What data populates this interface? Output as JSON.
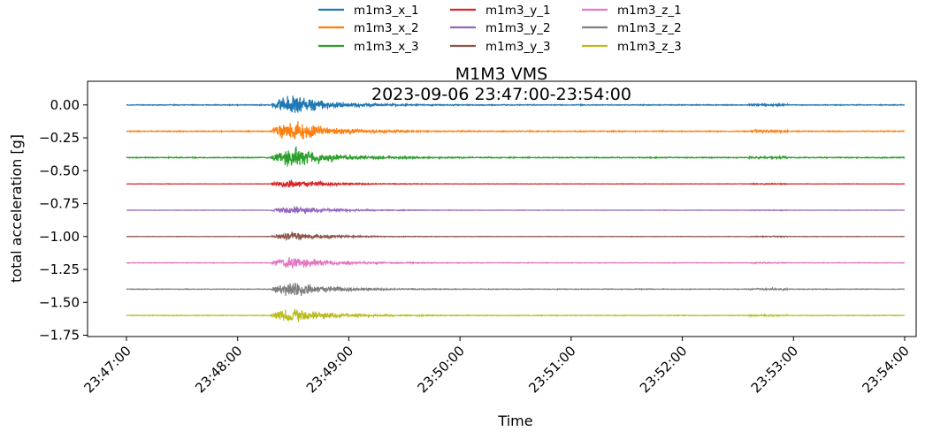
{
  "chart_data": {
    "type": "line",
    "title": "M1M3 VMS",
    "subtitle": "2023-09-06 23:47:00-23:54:00",
    "xlabel": "Time",
    "ylabel": "total acceleration [g]",
    "x_ticks": [
      "23:47:00",
      "23:48:00",
      "23:49:00",
      "23:50:00",
      "23:51:00",
      "23:52:00",
      "23:53:00",
      "23:54:00"
    ],
    "y_ticks": [
      0.0,
      -0.25,
      -0.5,
      -0.75,
      -1.0,
      -1.25,
      -1.5,
      -1.75
    ],
    "y_tick_labels": [
      "0.00",
      "−0.25",
      "−0.50",
      "−0.75",
      "−1.00",
      "−1.25",
      "−1.50",
      "−1.75"
    ],
    "ylim": [
      -1.76,
      0.18
    ],
    "legend_placement": "top-center, outside",
    "grid": false,
    "series": [
      {
        "name": "m1m3_x_1",
        "color": "#1f77b4",
        "offset": 0.0,
        "peak_amplitude": 0.09
      },
      {
        "name": "m1m3_x_2",
        "color": "#ff7f0e",
        "offset": -0.2,
        "peak_amplitude": 0.1
      },
      {
        "name": "m1m3_x_3",
        "color": "#2ca02c",
        "offset": -0.4,
        "peak_amplitude": 0.1
      },
      {
        "name": "m1m3_y_1",
        "color": "#d62728",
        "offset": -0.6,
        "peak_amplitude": 0.04
      },
      {
        "name": "m1m3_y_2",
        "color": "#9467bd",
        "offset": -0.8,
        "peak_amplitude": 0.04
      },
      {
        "name": "m1m3_y_3",
        "color": "#8c564b",
        "offset": -1.0,
        "peak_amplitude": 0.04
      },
      {
        "name": "m1m3_z_1",
        "color": "#e377c2",
        "offset": -1.2,
        "peak_amplitude": 0.06
      },
      {
        "name": "m1m3_z_2",
        "color": "#7f7f7f",
        "offset": -1.4,
        "peak_amplitude": 0.07
      },
      {
        "name": "m1m3_z_3",
        "color": "#bcbd22",
        "offset": -1.6,
        "peak_amplitude": 0.07
      }
    ]
  }
}
